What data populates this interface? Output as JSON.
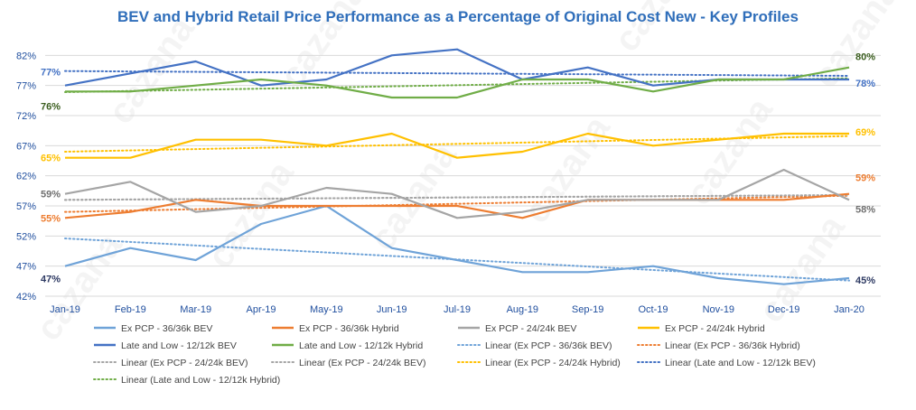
{
  "chart_data": {
    "type": "line",
    "title": "BEV and Hybrid Retail Price Performance as a Percentage of Original Cost New - Key Profiles",
    "categories": [
      "Jan-19",
      "Feb-19",
      "Mar-19",
      "Apr-19",
      "May-19",
      "Jun-19",
      "Jul-19",
      "Aug-19",
      "Sep-19",
      "Oct-19",
      "Nov-19",
      "Dec-19",
      "Jan-20"
    ],
    "y_ticks": [
      "42%",
      "47%",
      "52%",
      "57%",
      "62%",
      "67%",
      "72%",
      "77%",
      "82%"
    ],
    "ylim": [
      42,
      84
    ],
    "grid": "horizontal",
    "legend_position": "bottom",
    "watermark": "cazana",
    "series": [
      {
        "name": "Ex PCP - 36/36k BEV",
        "color": "#6fa3d8",
        "values": [
          47,
          50,
          48,
          54,
          57,
          50,
          48,
          46,
          46,
          47,
          45,
          44,
          45
        ]
      },
      {
        "name": "Ex PCP - 36/36k Hybrid",
        "color": "#ed7d31",
        "values": [
          55,
          56,
          58,
          57,
          57,
          57,
          57,
          55,
          58,
          58,
          58,
          58,
          59
        ]
      },
      {
        "name": "Ex PCP - 24/24k BEV",
        "color": "#a5a5a5",
        "values": [
          59,
          61,
          56,
          57,
          60,
          59,
          55,
          56,
          58,
          58,
          58,
          63,
          58
        ]
      },
      {
        "name": "Ex PCP - 24/24k Hybrid",
        "color": "#ffc000",
        "values": [
          65,
          65,
          68,
          68,
          67,
          69,
          65,
          66,
          69,
          67,
          68,
          69,
          69
        ]
      },
      {
        "name": "Late and Low - 12/12k BEV",
        "color": "#4472c4",
        "values": [
          77,
          79,
          81,
          77,
          78,
          82,
          83,
          78,
          80,
          77,
          78,
          78,
          78
        ]
      },
      {
        "name": "Late and Low - 12/12k Hybrid",
        "color": "#70ad47",
        "values": [
          76,
          76,
          77,
          78,
          77,
          75,
          75,
          78,
          78,
          76,
          78,
          78,
          80
        ]
      }
    ],
    "trendlines": [
      {
        "name": "Linear (Ex PCP - 36/36k BEV)",
        "color": "#6fa3d8",
        "start": 51.6,
        "end": 44.6
      },
      {
        "name": "Linear (Ex PCP - 36/36k Hybrid)",
        "color": "#ed7d31",
        "start": 56.0,
        "end": 58.7
      },
      {
        "name": "Linear (Ex PCP - 24/24k BEV)",
        "color": "#a5a5a5",
        "start": 58.0,
        "end": 58.8
      },
      {
        "name": "Linear (Ex PCP - 24/24k BEV)",
        "color": "#a5a5a5",
        "start": 58.0,
        "end": 58.8
      },
      {
        "name": "Linear (Ex PCP - 24/24k Hybrid)",
        "color": "#ffc000",
        "start": 66.0,
        "end": 68.6
      },
      {
        "name": "Linear (Late and Low - 12/12k BEV)",
        "color": "#4472c4",
        "start": 79.4,
        "end": 78.6
      },
      {
        "name": "Linear (Late and Low - 12/12k Hybrid)",
        "color": "#70ad47",
        "start": 75.9,
        "end": 78.2
      }
    ],
    "data_labels": [
      {
        "text": "77%",
        "color": "#4472c4",
        "side": "start",
        "series": 4,
        "dy": -11
      },
      {
        "text": "76%",
        "color": "#3b5e1f",
        "side": "start",
        "series": 5,
        "dy": 20
      },
      {
        "text": "65%",
        "color": "#ffc000",
        "side": "start",
        "series": 3,
        "dy": 4
      },
      {
        "text": "59%",
        "color": "#707070",
        "side": "start",
        "series": 2,
        "dy": 4
      },
      {
        "text": "55%",
        "color": "#ed7d31",
        "side": "start",
        "series": 1,
        "dy": 4
      },
      {
        "text": "47%",
        "color": "#2e3a63",
        "side": "start",
        "series": 0,
        "dy": 18
      },
      {
        "text": "80%",
        "color": "#3b5e1f",
        "side": "end",
        "series": 5,
        "dy": -8
      },
      {
        "text": "78%",
        "color": "#4472c4",
        "side": "end",
        "series": 4,
        "dy": 8
      },
      {
        "text": "69%",
        "color": "#ffc000",
        "side": "end",
        "series": 3,
        "dy": 2
      },
      {
        "text": "59%",
        "color": "#ed7d31",
        "side": "end",
        "series": 1,
        "dy": -14
      },
      {
        "text": "58%",
        "color": "#707070",
        "side": "end",
        "series": 2,
        "dy": 14
      },
      {
        "text": "45%",
        "color": "#2e3a63",
        "side": "end",
        "series": 0,
        "dy": 6
      }
    ]
  },
  "colors": {
    "title": "#2f6eba",
    "axis_text": "#1f4e9e",
    "grid": "#d9d9d9"
  }
}
